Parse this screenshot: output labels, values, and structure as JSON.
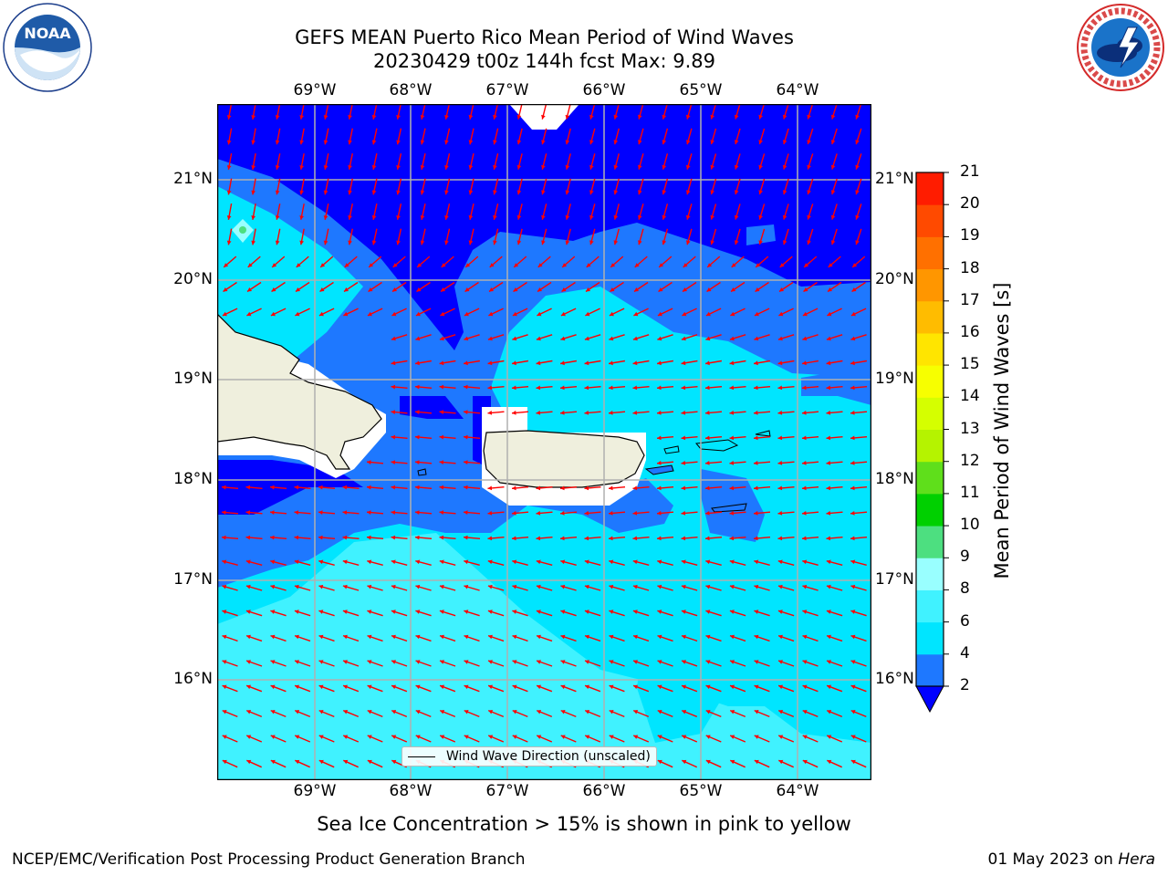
{
  "title": {
    "line1": "GEFS MEAN Puerto Rico Mean Period of Wind Waves",
    "line2": "20230429 t00z 144h fcst   Max: 9.89"
  },
  "logos": {
    "left": {
      "icon": "noaa-logo-icon",
      "text": "NOAA"
    },
    "right": {
      "icon": "national-weather-service-logo-icon"
    }
  },
  "map": {
    "lon_labels": [
      "69°W",
      "68°W",
      "67°W",
      "66°W",
      "65°W",
      "64°W"
    ],
    "lat_labels": [
      "21°N",
      "20°N",
      "19°N",
      "18°N",
      "17°N",
      "16°N"
    ],
    "arrow_color": "#ff0000",
    "land_color": "#efefdd",
    "legend": "Wind Wave Direction (unscaled)"
  },
  "colorbar": {
    "label": "Mean Period of Wind Waves [s]",
    "ticks": [
      "2",
      "4",
      "6",
      "8",
      "9",
      "10",
      "11",
      "12",
      "13",
      "14",
      "15",
      "16",
      "17",
      "18",
      "19",
      "20",
      "21"
    ],
    "colors": [
      "#1e78ff",
      "#00e5ff",
      "#40f2ff",
      "#99ffff",
      "#4ddf80",
      "#00d000",
      "#5fdf1b",
      "#b5f300",
      "#d5ff00",
      "#f7ff00",
      "#ffe500",
      "#ffbc00",
      "#ff9600",
      "#ff7000",
      "#ff4a00",
      "#ff1c00"
    ],
    "under_color": "#0000ff"
  },
  "subtitle": "Sea Ice Concentration > 15% is shown in pink to yellow",
  "footer": {
    "left": "NCEP/EMC/Verification Post Processing Product Generation Branch",
    "right_date": "01 May 2023 on ",
    "right_host": "Hera"
  }
}
